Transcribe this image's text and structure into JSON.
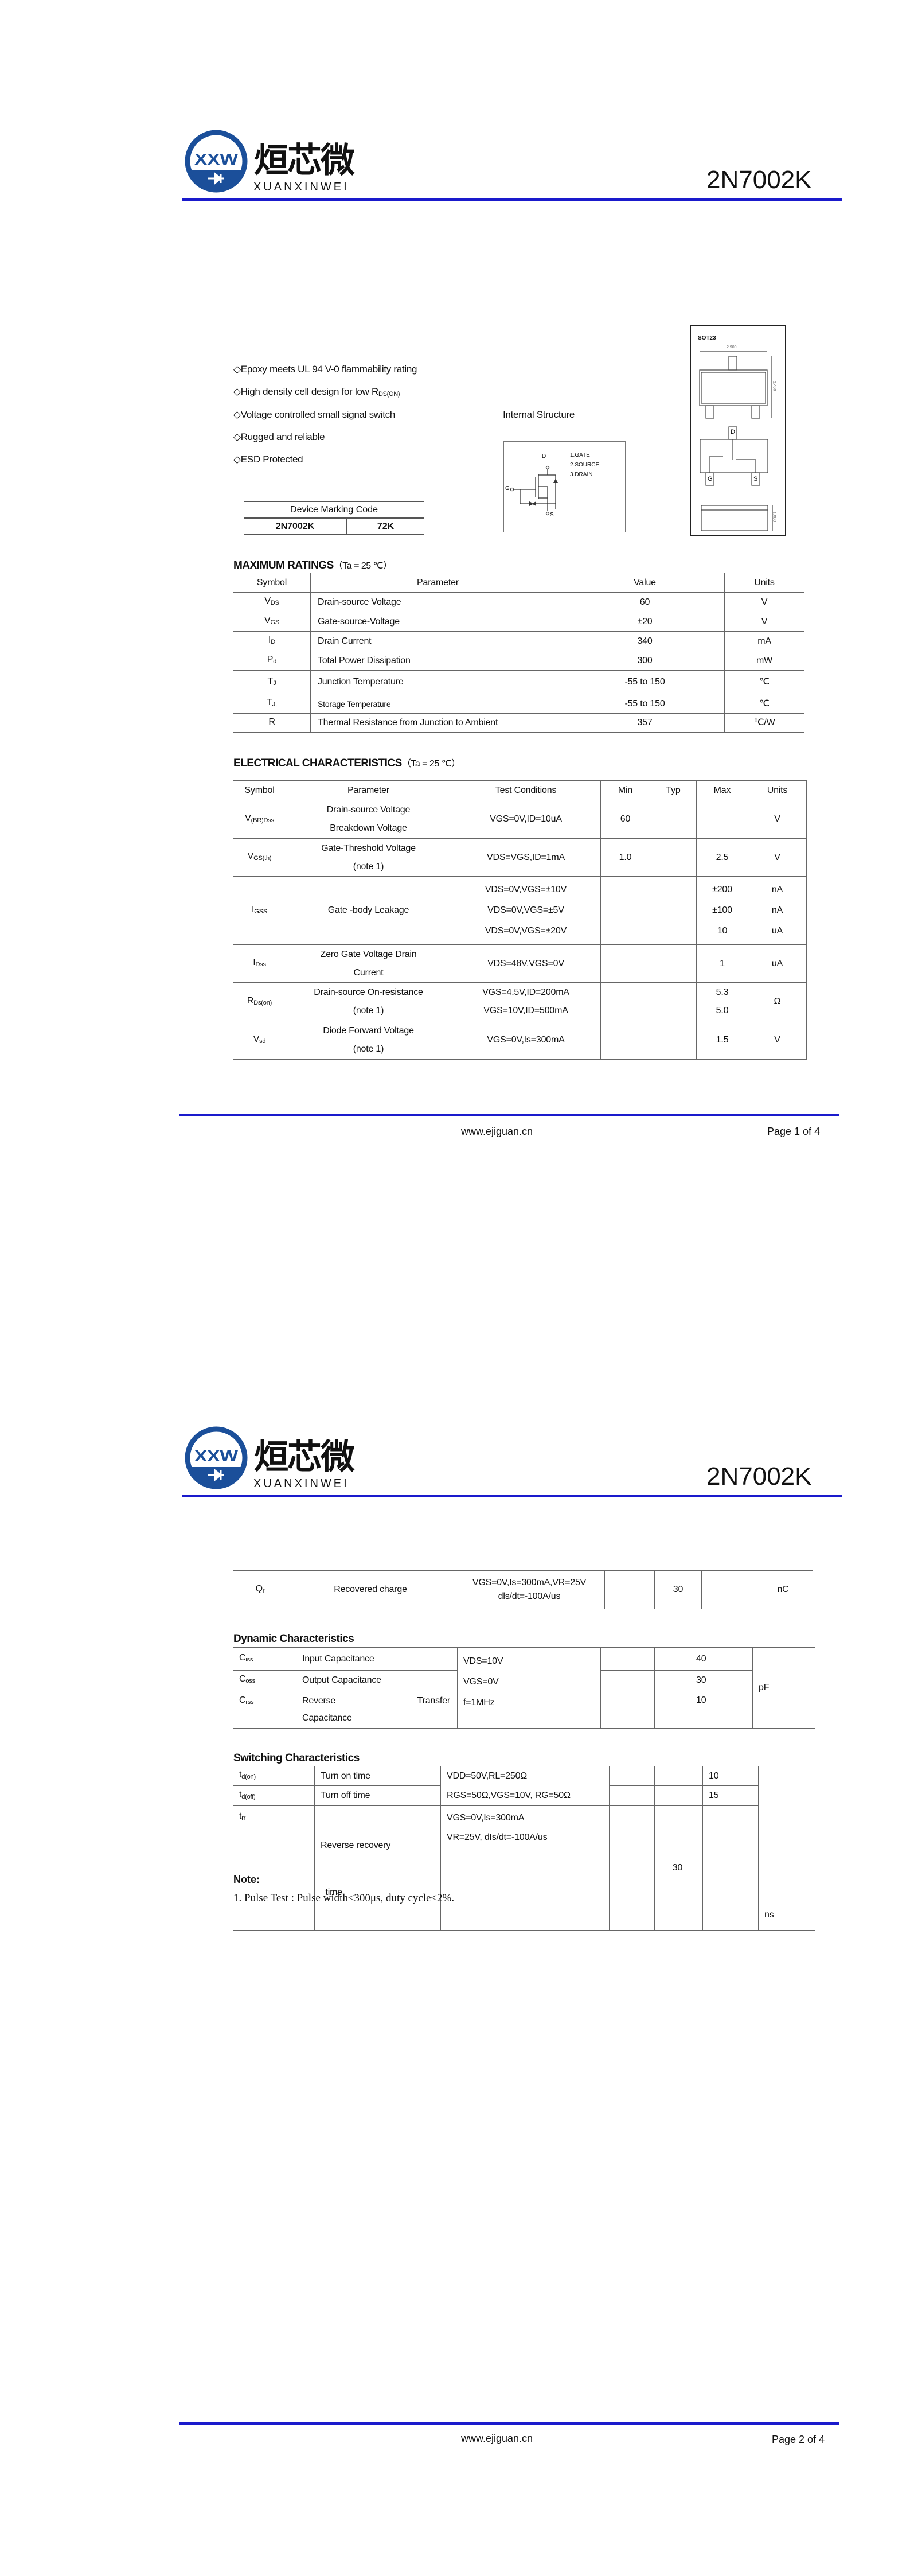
{
  "header": {
    "brand_cn": "烜芯微",
    "brand_en": "XUANXINWEI",
    "logo_letters": "XXW",
    "part_number": "2N7002K",
    "rule_color": "#1a1acc",
    "logo_color": "#1b4f9a"
  },
  "page1": {
    "features": [
      {
        "text": "◇Epoxy meets UL 94 V-0 flammability rating",
        "sub": ""
      },
      {
        "text": "◇High density cell design for low R",
        "sub": "DS(ON)"
      },
      {
        "text": "◇Voltage controlled small signal switch",
        "sub": ""
      },
      {
        "text": "◇Rugged and reliable",
        "sub": ""
      },
      {
        "text": "◇ESD Protected",
        "sub": ""
      }
    ],
    "internal_structure": {
      "title": "Internal Structure",
      "pins": [
        "1.GATE",
        "2.SOURCE",
        "3.DRAIN"
      ],
      "d": "D",
      "g": "G",
      "s": "S"
    },
    "package": {
      "name": "SOT23",
      "dims": [
        "2.900",
        "2.400",
        "1.080"
      ],
      "pin_d": "D",
      "pin_g": "G",
      "pin_s": "S"
    },
    "marking": {
      "header": "Device Marking Code",
      "part": "2N7002K",
      "code": "72K"
    },
    "max_ratings": {
      "title": "MAXIMUM RATINGS",
      "cond": "（Ta = 25 ℃）",
      "columns": [
        "Symbol",
        "Parameter",
        "Value",
        "Units"
      ],
      "rows": [
        {
          "sym": "V",
          "sub": "DS",
          "param": "Drain-source Voltage",
          "value": "60",
          "unit": "V"
        },
        {
          "sym": "V",
          "sub": "GS",
          "param": "Gate-source-Voltage",
          "value": "±20",
          "unit": "V"
        },
        {
          "sym": "I",
          "sub": "D",
          "param": "Drain Current",
          "value": "340",
          "unit": "mA"
        },
        {
          "sym": "P",
          "sub": "d",
          "param": "Total Power Dissipation",
          "value": "300",
          "unit": "mW"
        },
        {
          "sym": "T",
          "sub": "J",
          "param": "Junction Temperature",
          "value": "-55 to 150",
          "unit": "℃"
        },
        {
          "sym": "T",
          "sub": "J,",
          "param": "Storage Temperature",
          "value": "-55 to 150",
          "unit": "℃"
        },
        {
          "sym": "R",
          "sub": "",
          "param": "Thermal Resistance from Junction to Ambient",
          "value": "357",
          "unit": "℃/W"
        }
      ]
    },
    "electrical": {
      "title": "ELECTRICAL CHARACTERISTICS",
      "cond": "（Ta = 25 ℃）",
      "columns": [
        "Symbol",
        "Parameter",
        "Test Conditions",
        "Min",
        "Typ",
        "Max",
        "Units"
      ],
      "rows": [
        {
          "sym": "V",
          "sub": "(BR)Dss",
          "param": [
            "Drain-source Voltage",
            "Breakdown Voltage"
          ],
          "cond": [
            "VGS=0V,ID=10uA"
          ],
          "min": [
            "60"
          ],
          "typ": [],
          "max": [],
          "unit": [
            "V"
          ]
        },
        {
          "sym": "V",
          "sub": "GS(th)",
          "param": [
            "Gate-Threshold Voltage",
            "(note 1)"
          ],
          "cond": [
            "VDS=VGS,ID=1mA"
          ],
          "min": [
            "1.0"
          ],
          "typ": [],
          "max": [
            "2.5"
          ],
          "unit": [
            "V"
          ]
        },
        {
          "sym": "I",
          "sub": "GSS",
          "param": [
            "Gate -body Leakage"
          ],
          "cond": [
            "VDS=0V,VGS=±10V",
            "VDS=0V,VGS=±5V",
            "VDS=0V,VGS=±20V"
          ],
          "min": [],
          "typ": [],
          "max": [
            "±200",
            "±100",
            "10"
          ],
          "unit": [
            "nA",
            "nA",
            "uA"
          ]
        },
        {
          "sym": "I",
          "sub": "Dss",
          "param": [
            "Zero Gate Voltage Drain",
            "Current"
          ],
          "cond": [
            "VDS=48V,VGS=0V"
          ],
          "min": [],
          "typ": [],
          "max": [
            "1"
          ],
          "unit": [
            "uA"
          ]
        },
        {
          "sym": "R",
          "sub": "Ds(on)",
          "param": [
            "Drain-source On-resistance",
            "(note 1)"
          ],
          "cond": [
            "VGS=4.5V,ID=200mA",
            "VGS=10V,ID=500mA"
          ],
          "min": [],
          "typ": [],
          "max": [
            "5.3",
            "5.0"
          ],
          "unit": [
            "Ω"
          ]
        },
        {
          "sym": "V",
          "sub": "sd",
          "param": [
            "Diode Forward Voltage",
            "(note 1)"
          ],
          "cond": [
            "VGS=0V,Is=300mA"
          ],
          "min": [],
          "typ": [],
          "max": [
            "1.5"
          ],
          "unit": [
            "V"
          ]
        }
      ]
    },
    "footer": {
      "url": "www.ejiguan.cn",
      "page": "Page 1 of 4"
    }
  },
  "page2": {
    "qr": {
      "sym": "Q",
      "sub": "r",
      "param": "Recovered charge",
      "cond": [
        "VGS=0V,Is=300mA,VR=25V",
        "dls/dt=-100A/us"
      ],
      "typ": "30",
      "unit": "nC"
    },
    "dynamic": {
      "title": "Dynamic Characteristics",
      "rows": [
        {
          "sym": "C",
          "sub": "iss",
          "param": "Input Capacitance",
          "max": "40"
        },
        {
          "sym": "C",
          "sub": "oss",
          "param": "Output Capacitance",
          "max": "30"
        },
        {
          "sym": "C",
          "sub": "rss",
          "param_a": "Reverse",
          "param_b": "Transfer",
          "param_c": "Capacitance",
          "max": "10"
        }
      ],
      "cond": [
        "VDS=10V",
        "VGS=0V",
        "f=1MHz"
      ],
      "unit": "pF"
    },
    "switching": {
      "title": "Switching Characteristics",
      "rows": [
        {
          "sym": "t",
          "sub": "d(on)",
          "param": "Turn on time",
          "max": "10"
        },
        {
          "sym": "t",
          "sub": "d(off)",
          "param": "Turn off time",
          "max": "15"
        },
        {
          "sym": "t",
          "sub": "rr",
          "param": [
            "Reverse recovery",
            "  time"
          ],
          "cond": [
            "VGS=0V,Is=300mA",
            "VR=25V, dIs/dt=-100A/us"
          ],
          "typ": "30"
        }
      ],
      "cond_12": [
        "VDD=50V,RL=250Ω",
        "RGS=50Ω,VGS=10V, RG=50Ω"
      ],
      "unit": "ns"
    },
    "note": {
      "title": "Note:",
      "line": "1. Pulse Test : Pulse width≤300μs, duty cycle≤2%."
    },
    "footer": {
      "url": "www.ejiguan.cn",
      "page": "Page 2 of 4"
    }
  }
}
